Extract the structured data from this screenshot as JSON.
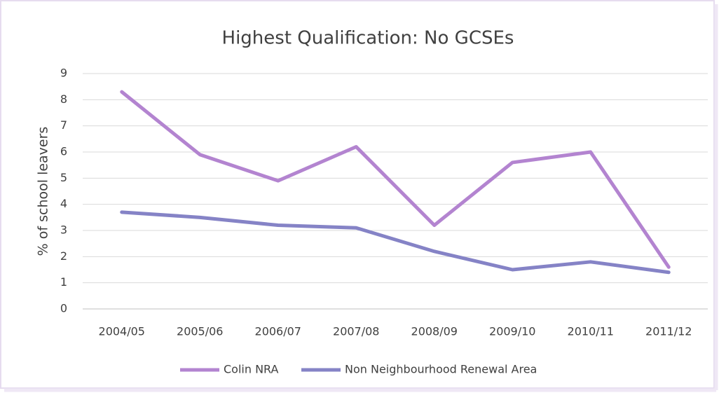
{
  "chart_data": {
    "type": "line",
    "title": "Highest Qualification: No GCSEs",
    "ylabel": "% of school leavers",
    "categories": [
      "2004/05",
      "2005/06",
      "2006/07",
      "2007/08",
      "2008/09",
      "2009/10",
      "2010/11",
      "2011/12"
    ],
    "series": [
      {
        "name": "Colin NRA",
        "color": "#b384d0",
        "values": [
          8.3,
          5.9,
          4.9,
          6.2,
          3.2,
          5.6,
          6.0,
          1.6
        ]
      },
      {
        "name": "Non Neighbourhood Renewal Area",
        "color": "#8583c6",
        "values": [
          3.7,
          3.5,
          3.2,
          3.1,
          2.2,
          1.5,
          1.8,
          1.4
        ]
      }
    ],
    "ylim": [
      0,
      9
    ],
    "yticks": [
      0,
      1,
      2,
      3,
      4,
      5,
      6,
      7,
      8,
      9
    ],
    "grid": true,
    "legend": "bottom"
  }
}
